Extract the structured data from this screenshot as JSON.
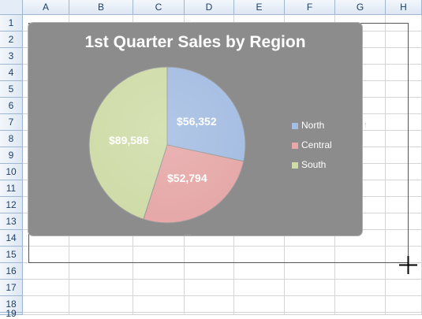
{
  "sheet": {
    "columns": [
      "A",
      "B",
      "C",
      "D",
      "E",
      "F",
      "G",
      "H"
    ],
    "rows": [
      "1",
      "2",
      "3",
      "4",
      "5",
      "6",
      "7",
      "8",
      "9",
      "10",
      "11",
      "12",
      "13",
      "14",
      "15",
      "16",
      "17",
      "18",
      "19"
    ]
  },
  "chart": {
    "title": "1st Quarter Sales by Region",
    "slices": [
      {
        "name": "North",
        "value": 56352,
        "label": "$56,352",
        "color": "#a4bde2"
      },
      {
        "name": "Central",
        "value": 52794,
        "label": "$52,794",
        "color": "#e6a8a8"
      },
      {
        "name": "South",
        "value": 89586,
        "label": "$89,586",
        "color": "#cfdca8"
      }
    ],
    "legend": [
      "North",
      "Central",
      "South"
    ],
    "background_color": "#8c8c8c"
  },
  "chart_data": {
    "type": "pie",
    "title": "1st Quarter Sales by Region",
    "categories": [
      "North",
      "Central",
      "South"
    ],
    "values": [
      56352,
      52794,
      89586
    ],
    "labels": [
      "$56,352",
      "$52,794",
      "$89,586"
    ],
    "legend_position": "right"
  },
  "cursor": {
    "icon": "crosshair-cursor-icon"
  }
}
